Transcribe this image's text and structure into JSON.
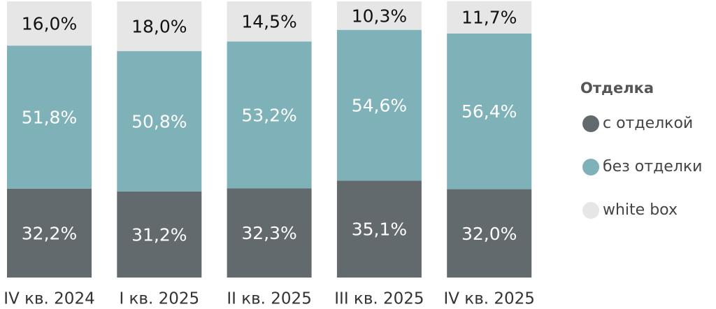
{
  "chart_data": {
    "type": "stacked_bar_100",
    "legend_title": "Отделка",
    "categories": [
      "IV кв. 2024",
      "I кв. 2025",
      "II кв. 2025",
      "III кв. 2025",
      "IV кв. 2025"
    ],
    "series": [
      {
        "name": "с отделкой",
        "color": "#636a6e",
        "label_color": "#ffffff",
        "values": [
          32.2,
          31.2,
          32.3,
          35.1,
          32.0
        ],
        "value_labels": [
          "32,2%",
          "31,2%",
          "32,3%",
          "35,1%",
          "32,0%"
        ]
      },
      {
        "name": "без отделки",
        "color": "#7fb2b8",
        "label_color": "#ffffff",
        "values": [
          51.8,
          50.8,
          53.2,
          54.6,
          56.4
        ],
        "value_labels": [
          "51,8%",
          "50,8%",
          "53,2%",
          "54,6%",
          "56,4%"
        ]
      },
      {
        "name": "white box",
        "color": "#e6e6e6",
        "label_color": "#111111",
        "values": [
          16.0,
          18.0,
          14.5,
          10.3,
          11.7
        ],
        "value_labels": [
          "16,0%",
          "18,0%",
          "14,5%",
          "10,3%",
          "11,7%"
        ]
      }
    ],
    "ylim": [
      0,
      100
    ]
  }
}
